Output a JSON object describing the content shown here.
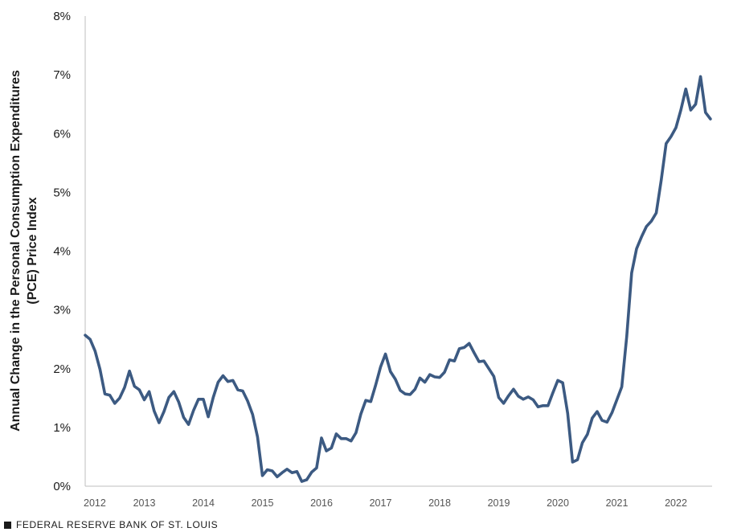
{
  "chart_data": {
    "type": "line",
    "ylabel_lines": [
      "Annual Change in the Personal Consumption Expenditures",
      "(PCE) Price Index"
    ],
    "y_ticks": [
      "0%",
      "1%",
      "2%",
      "3%",
      "4%",
      "5%",
      "6%",
      "7%",
      "8%"
    ],
    "ylim": [
      0,
      8
    ],
    "x_ticks": [
      "2012",
      "2013",
      "2014",
      "2015",
      "2016",
      "2017",
      "2018",
      "2019",
      "2020",
      "2021",
      "2022"
    ],
    "x_start": "2012-01",
    "grid": false,
    "series": [
      {
        "color": "#3c5a82",
        "values": [
          2.57,
          2.5,
          2.3,
          1.99,
          1.57,
          1.55,
          1.41,
          1.5,
          1.68,
          1.96,
          1.7,
          1.64,
          1.47,
          1.61,
          1.28,
          1.08,
          1.27,
          1.51,
          1.61,
          1.43,
          1.17,
          1.05,
          1.29,
          1.48,
          1.48,
          1.18,
          1.51,
          1.77,
          1.88,
          1.78,
          1.8,
          1.64,
          1.62,
          1.45,
          1.22,
          0.84,
          0.18,
          0.28,
          0.26,
          0.16,
          0.23,
          0.29,
          0.23,
          0.25,
          0.08,
          0.11,
          0.24,
          0.31,
          0.82,
          0.6,
          0.65,
          0.89,
          0.81,
          0.81,
          0.77,
          0.91,
          1.23,
          1.46,
          1.44,
          1.72,
          2.03,
          2.25,
          1.95,
          1.82,
          1.63,
          1.57,
          1.56,
          1.65,
          1.84,
          1.77,
          1.9,
          1.86,
          1.85,
          1.94,
          2.15,
          2.13,
          2.34,
          2.36,
          2.43,
          2.27,
          2.12,
          2.13,
          2.0,
          1.87,
          1.51,
          1.41,
          1.54,
          1.65,
          1.53,
          1.48,
          1.52,
          1.47,
          1.35,
          1.37,
          1.37,
          1.59,
          1.8,
          1.76,
          1.24,
          0.41,
          0.45,
          0.74,
          0.88,
          1.16,
          1.27,
          1.12,
          1.09,
          1.25,
          1.47,
          1.69,
          2.55,
          3.63,
          4.04,
          4.24,
          4.42,
          4.51,
          4.65,
          5.2,
          5.83,
          5.95,
          6.1,
          6.4,
          6.76,
          6.4,
          6.5,
          6.97,
          6.36,
          6.25
        ]
      }
    ]
  },
  "footer": {
    "source": "FEDERAL RESERVE BANK OF ST. LOUIS"
  }
}
